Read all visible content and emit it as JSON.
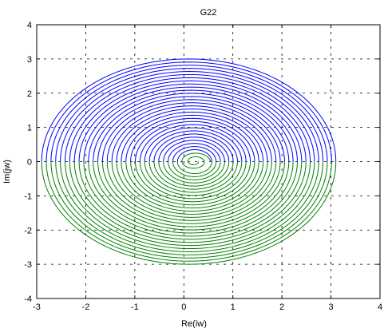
{
  "chart_data": {
    "type": "line",
    "title": "G22",
    "xlabel": "Re(iw)",
    "ylabel": "Im(jw)",
    "xlim": [
      -3,
      4
    ],
    "ylim": [
      -4,
      4
    ],
    "xticks": [
      "-3",
      "-2",
      "-1",
      "0",
      "1",
      "2",
      "3",
      "4"
    ],
    "yticks": [
      "-4",
      "-3",
      "-2",
      "-1",
      "0",
      "1",
      "2",
      "3",
      "4"
    ],
    "grid": true,
    "colors": {
      "upper": "#0000ff",
      "lower": "#007f00",
      "axes": "#000000",
      "grid": "#000000"
    },
    "series": [
      {
        "color": "#0000ff",
        "half": "upper",
        "count": 30,
        "outer_radius": 3.0,
        "outer_center": 0.1,
        "inner_radius": 0.35,
        "inner_center": 0.22
      },
      {
        "color": "#007f00",
        "half": "lower",
        "count": 30,
        "outer_radius": 3.0,
        "outer_center": 0.1,
        "inner_radius": 0.35,
        "inner_center": 0.22
      }
    ]
  }
}
